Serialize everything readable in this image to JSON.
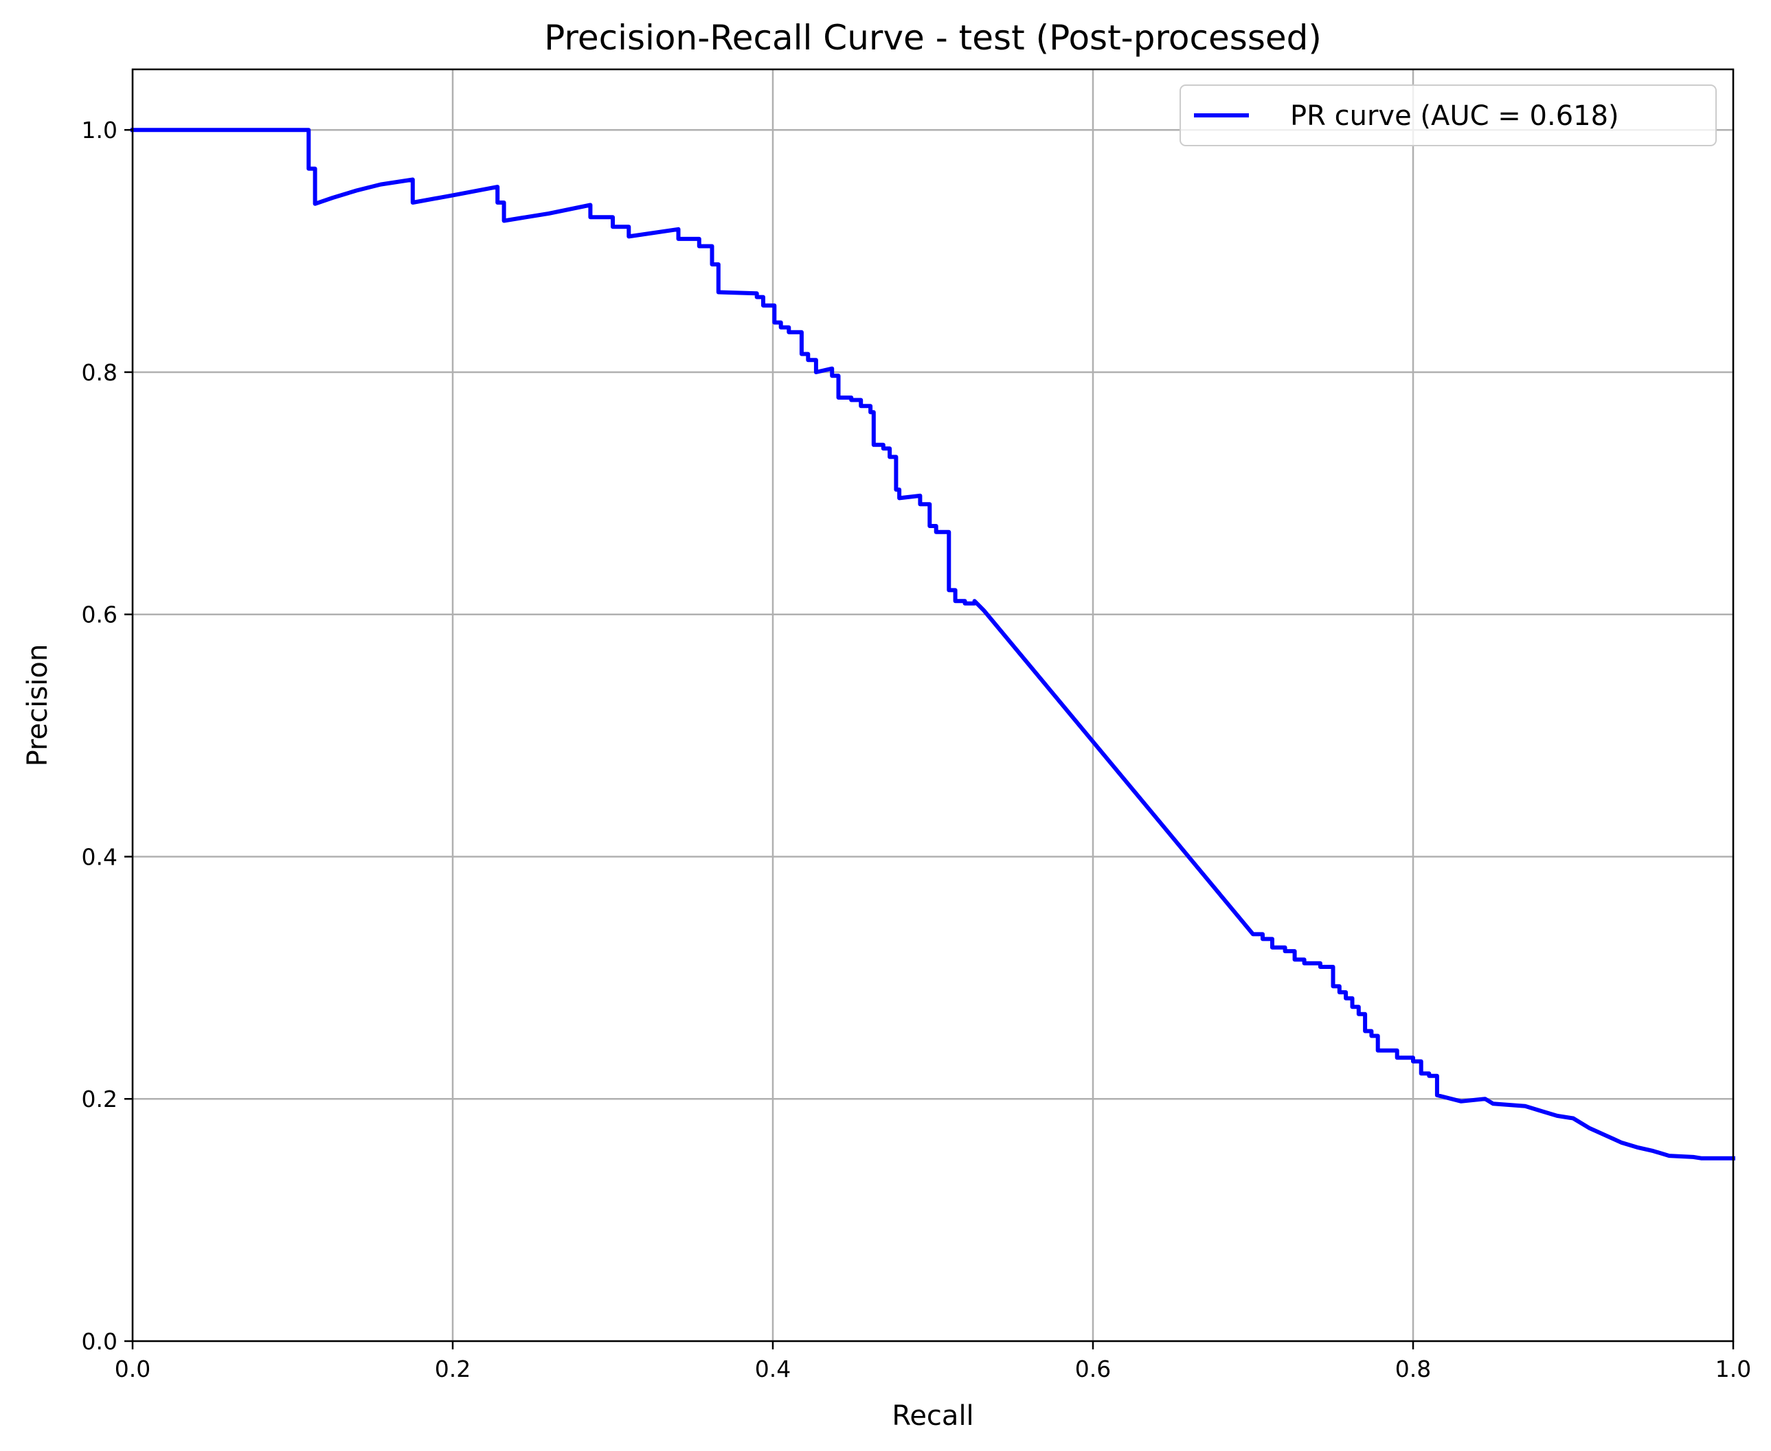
{
  "chart_data": {
    "type": "line",
    "title": "Precision-Recall Curve - test (Post-processed)",
    "xlabel": "Recall",
    "ylabel": "Precision",
    "xlim": [
      0,
      1
    ],
    "ylim": [
      0,
      1.05
    ],
    "xticks": [
      0.0,
      0.2,
      0.4,
      0.6,
      0.8,
      1.0
    ],
    "yticks": [
      0.0,
      0.2,
      0.4,
      0.6,
      0.8,
      1.0
    ],
    "xtick_labels": [
      "0.0",
      "0.2",
      "0.4",
      "0.6",
      "0.8",
      "1.0"
    ],
    "ytick_labels": [
      "0.0",
      "0.2",
      "0.4",
      "0.6",
      "0.8",
      "1.0"
    ],
    "grid": true,
    "legend_position": "top-right",
    "series": [
      {
        "name": "PR curve (AUC = 0.618)",
        "color": "#0000ff",
        "x": [
          0.0,
          0.11,
          0.11,
          0.114,
          0.114,
          0.125,
          0.14,
          0.155,
          0.175,
          0.175,
          0.2,
          0.228,
          0.228,
          0.232,
          0.232,
          0.26,
          0.286,
          0.286,
          0.3,
          0.3,
          0.31,
          0.31,
          0.341,
          0.341,
          0.354,
          0.354,
          0.362,
          0.362,
          0.366,
          0.366,
          0.39,
          0.39,
          0.394,
          0.394,
          0.401,
          0.401,
          0.405,
          0.405,
          0.41,
          0.41,
          0.418,
          0.418,
          0.422,
          0.422,
          0.427,
          0.427,
          0.437,
          0.437,
          0.441,
          0.441,
          0.449,
          0.449,
          0.455,
          0.455,
          0.461,
          0.461,
          0.463,
          0.463,
          0.469,
          0.469,
          0.473,
          0.473,
          0.477,
          0.477,
          0.479,
          0.479,
          0.492,
          0.492,
          0.498,
          0.498,
          0.502,
          0.502,
          0.51,
          0.51,
          0.514,
          0.514,
          0.52,
          0.52,
          0.526,
          0.526,
          0.532,
          0.7,
          0.706,
          0.706,
          0.712,
          0.712,
          0.72,
          0.72,
          0.726,
          0.726,
          0.732,
          0.732,
          0.742,
          0.742,
          0.75,
          0.75,
          0.754,
          0.754,
          0.758,
          0.758,
          0.762,
          0.762,
          0.766,
          0.766,
          0.77,
          0.77,
          0.774,
          0.774,
          0.778,
          0.778,
          0.79,
          0.79,
          0.8,
          0.8,
          0.805,
          0.805,
          0.81,
          0.81,
          0.815,
          0.815,
          0.83,
          0.845,
          0.845,
          0.85,
          0.85,
          0.87,
          0.87,
          0.88,
          0.88,
          0.89,
          0.89,
          0.9,
          0.9,
          0.91,
          0.91,
          0.915,
          0.915,
          0.925,
          0.925,
          0.93,
          0.93,
          0.94,
          0.94,
          0.95,
          0.95,
          0.96,
          0.975,
          0.98,
          1.0
        ],
        "y": [
          1.0,
          1.0,
          0.968,
          0.968,
          0.939,
          0.944,
          0.95,
          0.955,
          0.959,
          0.94,
          0.946,
          0.953,
          0.94,
          0.94,
          0.925,
          0.931,
          0.938,
          0.928,
          0.928,
          0.92,
          0.92,
          0.912,
          0.918,
          0.91,
          0.91,
          0.904,
          0.904,
          0.889,
          0.889,
          0.866,
          0.865,
          0.862,
          0.862,
          0.855,
          0.855,
          0.841,
          0.841,
          0.837,
          0.837,
          0.833,
          0.833,
          0.815,
          0.815,
          0.81,
          0.81,
          0.8,
          0.803,
          0.797,
          0.797,
          0.779,
          0.779,
          0.777,
          0.777,
          0.772,
          0.772,
          0.767,
          0.767,
          0.74,
          0.74,
          0.737,
          0.737,
          0.73,
          0.73,
          0.703,
          0.703,
          0.696,
          0.698,
          0.691,
          0.691,
          0.673,
          0.673,
          0.668,
          0.668,
          0.62,
          0.62,
          0.611,
          0.611,
          0.609,
          0.609,
          0.611,
          0.603,
          0.336,
          0.336,
          0.332,
          0.332,
          0.325,
          0.325,
          0.322,
          0.322,
          0.315,
          0.315,
          0.312,
          0.312,
          0.309,
          0.309,
          0.293,
          0.293,
          0.288,
          0.288,
          0.283,
          0.283,
          0.276,
          0.276,
          0.27,
          0.27,
          0.256,
          0.256,
          0.252,
          0.252,
          0.24,
          0.24,
          0.234,
          0.234,
          0.231,
          0.231,
          0.221,
          0.221,
          0.219,
          0.219,
          0.203,
          0.198,
          0.2,
          0.2,
          0.196,
          0.196,
          0.194,
          0.194,
          0.19,
          0.19,
          0.186,
          0.186,
          0.184,
          0.184,
          0.176,
          0.176,
          0.173,
          0.173,
          0.167,
          0.167,
          0.164,
          0.164,
          0.16,
          0.16,
          0.157,
          0.157,
          0.153,
          0.152,
          0.151,
          0.151
        ]
      }
    ]
  }
}
